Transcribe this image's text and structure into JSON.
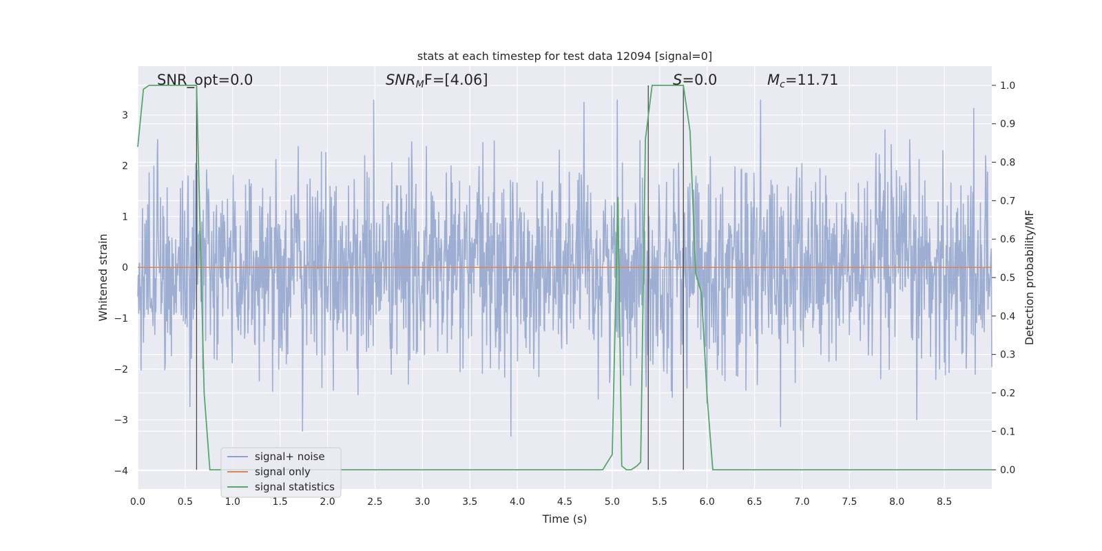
{
  "chart_data": {
    "type": "line",
    "title": "stats at each timestep for test data 12094 [signal=0]",
    "xlabel": "Time (s)",
    "ylabel_left": "Whitened strain",
    "ylabel_right": "Detection probability/MF",
    "xlim": [
      0.0,
      9.0
    ],
    "ylim_left": [
      -4.36,
      3.96
    ],
    "ylim_right": [
      -0.05,
      1.05
    ],
    "grid": true,
    "legend_position": "lower-left",
    "x_ticks": [
      "0.0",
      "0.5",
      "1.0",
      "1.5",
      "2.0",
      "2.5",
      "3.0",
      "3.5",
      "4.0",
      "4.5",
      "5.0",
      "5.5",
      "6.0",
      "6.5",
      "7.0",
      "7.5",
      "8.0",
      "8.5"
    ],
    "x_tick_values": [
      0.0,
      0.5,
      1.0,
      1.5,
      2.0,
      2.5,
      3.0,
      3.5,
      4.0,
      4.5,
      5.0,
      5.5,
      6.0,
      6.5,
      7.0,
      7.5,
      8.0,
      8.5
    ],
    "y_left_ticks": [
      "−4",
      "−3",
      "−2",
      "−1",
      "0",
      "1",
      "2",
      "3"
    ],
    "y_left_tick_values": [
      -4,
      -3,
      -2,
      -1,
      0,
      1,
      2,
      3
    ],
    "y_right_ticks": [
      "0.0",
      "0.1",
      "0.2",
      "0.3",
      "0.4",
      "0.5",
      "0.6",
      "0.7",
      "0.8",
      "0.9",
      "1.0"
    ],
    "y_right_tick_values": [
      0.0,
      0.1,
      0.2,
      0.3,
      0.4,
      0.5,
      0.6,
      0.7,
      0.8,
      0.9,
      1.0
    ],
    "annotations": {
      "snr_opt": "SNR_opt=0.0",
      "snr_mf_prefix": "SNR",
      "snr_mf_sub": "M",
      "snr_mf_suffix": "F=[4.06]",
      "s_prefix": "S",
      "s_suffix": "=0.0",
      "mc_prefix": "M",
      "mc_sub": "c",
      "mc_suffix": "=11.71"
    },
    "vertical_lines_x": [
      0.62,
      5.38,
      5.75
    ],
    "series": [
      {
        "name": "signal+ noise",
        "color": "#8fa3cc",
        "axis": "left",
        "description_stats": {
          "mean": 0.0,
          "std": 1.0,
          "n_points": 1800
        }
      },
      {
        "name": "signal only",
        "color": "#dd8452",
        "axis": "left",
        "x": [
          0.0,
          9.0
        ],
        "y": [
          0.0,
          0.0
        ]
      },
      {
        "name": "signal statistics",
        "color": "#55a868",
        "axis": "right",
        "x": [
          0.0,
          0.06,
          0.12,
          0.18,
          0.24,
          0.3,
          0.36,
          0.42,
          0.48,
          0.54,
          0.6,
          0.62,
          0.66,
          0.7,
          0.76,
          0.82,
          0.9,
          4.9,
          4.95,
          5.0,
          5.06,
          5.1,
          5.15,
          5.2,
          5.26,
          5.3,
          5.35,
          5.38,
          5.42,
          5.48,
          5.55,
          5.62,
          5.7,
          5.75,
          5.82,
          5.88,
          5.94,
          6.0,
          6.06,
          6.12,
          9.0
        ],
        "y": [
          0.84,
          0.99,
          1.0,
          1.0,
          1.0,
          1.0,
          1.0,
          1.0,
          1.0,
          1.0,
          1.0,
          1.0,
          0.6,
          0.2,
          0.0,
          0.0,
          0.0,
          0.0,
          0.02,
          0.04,
          0.71,
          0.01,
          0.0,
          0.0,
          0.01,
          0.02,
          0.86,
          0.92,
          1.0,
          1.0,
          1.0,
          1.0,
          1.0,
          1.0,
          0.88,
          0.51,
          0.46,
          0.19,
          0.0,
          0.0,
          0.0
        ]
      }
    ]
  }
}
